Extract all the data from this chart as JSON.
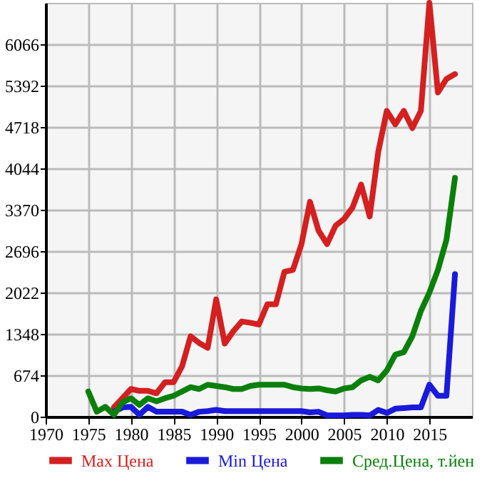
{
  "chart_data": {
    "type": "line",
    "x": [
      1975,
      1976,
      1977,
      1978,
      1979,
      1980,
      1981,
      1982,
      1983,
      1984,
      1985,
      1986,
      1987,
      1988,
      1989,
      1990,
      1991,
      1992,
      1993,
      1994,
      1995,
      1996,
      1997,
      1998,
      1999,
      2000,
      2001,
      2002,
      2003,
      2004,
      2005,
      2006,
      2007,
      2008,
      2009,
      2010,
      2011,
      2012,
      2013,
      2014,
      2015,
      2016,
      2017,
      2018
    ],
    "series": [
      {
        "name": "Max Цена",
        "color": "#d42020",
        "values": [
          null,
          null,
          null,
          150,
          300,
          450,
          420,
          420,
          380,
          560,
          560,
          820,
          1310,
          1200,
          1120,
          1910,
          1190,
          1390,
          1550,
          1530,
          1500,
          1830,
          1830,
          2360,
          2390,
          2810,
          3500,
          3030,
          2810,
          3110,
          3220,
          3410,
          3780,
          3260,
          4310,
          4980,
          4760,
          4980,
          4700,
          4980,
          6740,
          5280,
          5500,
          5580
        ]
      },
      {
        "name": "Min Цена",
        "color": "#1a1adb",
        "values": [
          null,
          null,
          null,
          80,
          150,
          160,
          30,
          160,
          80,
          80,
          80,
          80,
          30,
          80,
          90,
          110,
          90,
          90,
          90,
          90,
          90,
          90,
          90,
          90,
          90,
          90,
          70,
          80,
          20,
          20,
          20,
          30,
          30,
          20,
          110,
          60,
          130,
          140,
          150,
          150,
          520,
          340,
          340,
          2320
        ]
      },
      {
        "name": "Сред.Цена, т.йен",
        "color": "#0a800a",
        "values": [
          410,
          80,
          160,
          30,
          230,
          300,
          190,
          300,
          250,
          300,
          340,
          410,
          480,
          450,
          520,
          500,
          480,
          450,
          450,
          500,
          520,
          520,
          520,
          520,
          480,
          460,
          450,
          460,
          430,
          410,
          460,
          480,
          590,
          650,
          590,
          750,
          1010,
          1050,
          1310,
          1720,
          2020,
          2390,
          2880,
          3890
        ]
      }
    ],
    "xlim": [
      1970,
      2020
    ],
    "xticks": [
      1970,
      1975,
      1980,
      1985,
      1990,
      1995,
      2000,
      2005,
      2010,
      2015
    ],
    "ylim": [
      0,
      6740
    ],
    "yticks": [
      0,
      674,
      1348,
      2022,
      2696,
      3370,
      4044,
      4718,
      5392,
      6066
    ],
    "grid": true,
    "legend": "bottom",
    "marker": "none",
    "line_style": "solid"
  }
}
